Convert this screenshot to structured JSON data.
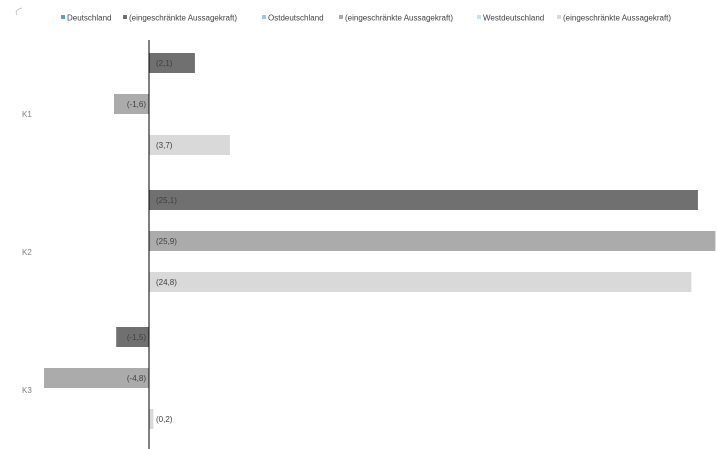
{
  "chart_data": {
    "type": "bar",
    "orientation": "horizontal",
    "categories": [
      "K1",
      "K2",
      "K3"
    ],
    "legend": [
      {
        "label": "Deutschland",
        "color": "#5b9bd5"
      },
      {
        "label": "(eingeschränkte Aussagekraft)",
        "color": "#707070"
      },
      {
        "label": "Ostdeutschland",
        "color": "#9dc3e6"
      },
      {
        "label": "(eingeschränkte Aussagekraft)",
        "color": "#ababab"
      },
      {
        "label": "Westdeutschland",
        "color": "#c9dff2"
      },
      {
        "label": "(eingeschränkte Aussagekraft)",
        "color": "#d9d9d9"
      }
    ],
    "series": [
      {
        "values": [
          2.1,
          25.1,
          -1.5
        ],
        "labels": [
          "(2,1)",
          "(25,1)",
          "(-1,5)"
        ],
        "color": "#707070"
      },
      {
        "values": [
          -1.6,
          25.9,
          -4.8
        ],
        "labels": [
          "(-1,6)",
          "(25,9)",
          "(-4,8)"
        ],
        "color": "#ababab"
      },
      {
        "values": [
          3.7,
          24.8,
          0.2
        ],
        "labels": [
          "(3,7)",
          "(24,8)",
          "(0,2)"
        ],
        "color": "#d9d9d9"
      }
    ],
    "xlim": [
      -4.8,
      25.9
    ],
    "legend_position": "top",
    "grid": false
  }
}
